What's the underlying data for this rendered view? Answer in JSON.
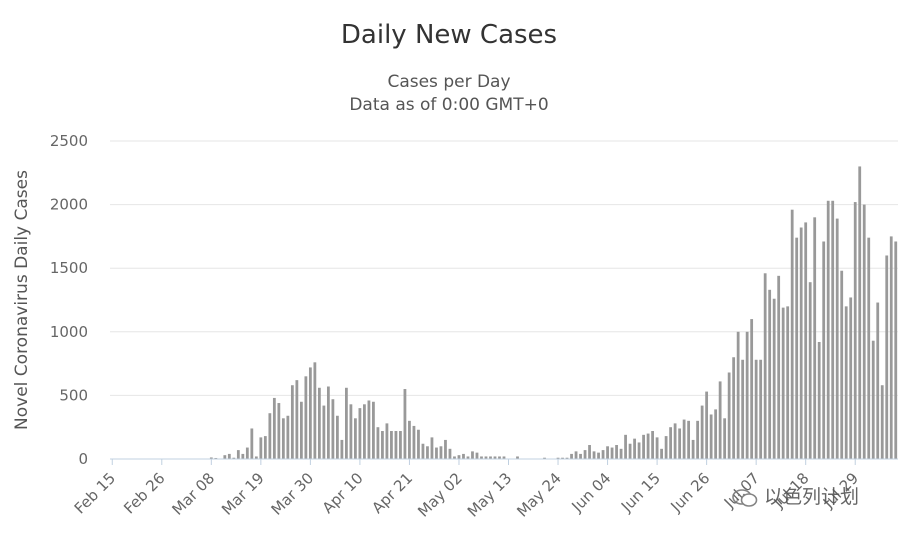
{
  "chart_data": {
    "type": "bar",
    "title": "Daily New Cases",
    "subtitle": [
      "Cases per Day",
      "Data as of 0:00 GMT+0"
    ],
    "ylabel": "Novel Coronavirus Daily Cases",
    "xlabel": "",
    "ylim": [
      0,
      2500
    ],
    "yticks": [
      0,
      500,
      1000,
      1500,
      2000,
      2500
    ],
    "xtick_labels": [
      "Feb 15",
      "Feb 26",
      "Mar 08",
      "Mar 19",
      "Mar 30",
      "Apr 10",
      "Apr 21",
      "May 02",
      "May 13",
      "May 24",
      "Jun 04",
      "Jun 15",
      "Jun 26",
      "Jul 07",
      "Jul 18",
      "Jul 29"
    ],
    "grid": true,
    "legend": "none",
    "bar_color": "#999999",
    "start_date": "Feb 15",
    "values": [
      0,
      0,
      0,
      0,
      0,
      0,
      0,
      0,
      0,
      0,
      0,
      0,
      0,
      0,
      0,
      0,
      0,
      0,
      0,
      0,
      0,
      0,
      12,
      8,
      2,
      30,
      40,
      10,
      70,
      40,
      90,
      240,
      20,
      170,
      180,
      360,
      480,
      440,
      320,
      340,
      580,
      620,
      450,
      650,
      720,
      760,
      560,
      420,
      570,
      470,
      340,
      150,
      560,
      430,
      320,
      400,
      430,
      460,
      450,
      250,
      220,
      280,
      220,
      220,
      220,
      550,
      300,
      260,
      230,
      120,
      100,
      170,
      90,
      100,
      150,
      80,
      20,
      30,
      40,
      20,
      60,
      50,
      20,
      20,
      20,
      20,
      20,
      20,
      0,
      0,
      20,
      0,
      0,
      0,
      0,
      0,
      10,
      0,
      0,
      10,
      10,
      10,
      40,
      60,
      40,
      70,
      110,
      60,
      50,
      70,
      100,
      90,
      110,
      80,
      190,
      120,
      160,
      130,
      190,
      200,
      220,
      170,
      80,
      180,
      250,
      280,
      240,
      310,
      300,
      150,
      300,
      420,
      530,
      350,
      390,
      610,
      320,
      680,
      800,
      1000,
      780,
      1000,
      1100,
      780,
      780,
      1460,
      1330,
      1260,
      1440,
      1190,
      1200,
      1960,
      1740,
      1820,
      1860,
      1390,
      1900,
      920,
      1710,
      2030,
      2030,
      1890,
      1480,
      1200,
      1270,
      2020,
      2300,
      2000,
      1740,
      930,
      1230,
      580,
      1600,
      1750,
      1710
    ]
  },
  "watermark": {
    "text": "以色列计划",
    "icon": "wechat-icon"
  }
}
